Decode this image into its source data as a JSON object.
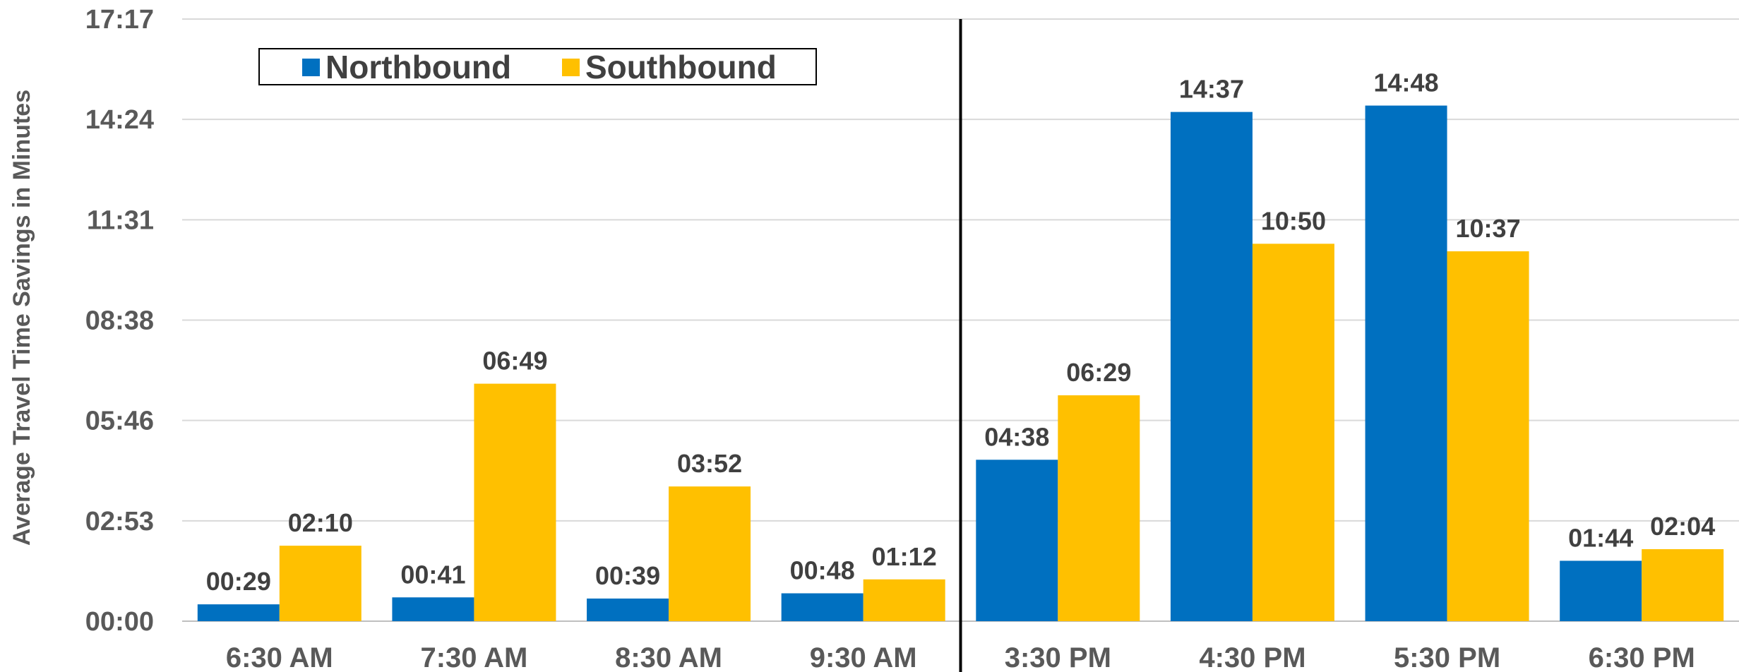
{
  "chart_data": {
    "type": "bar",
    "ylabel": "Average Travel Time Savings in Minutes",
    "xlabel": "",
    "y_ticks": [
      "00:00",
      "02:53",
      "05:46",
      "08:38",
      "11:31",
      "14:24",
      "17:17"
    ],
    "ylim_seconds": [
      0,
      1037
    ],
    "grid": true,
    "legend_position": "top-left",
    "categories": [
      "6:30 AM",
      "7:30 AM",
      "8:30 AM",
      "9:30 AM",
      "3:30 PM",
      "4:30 PM",
      "5:30 PM",
      "6:30 PM"
    ],
    "divider_after_category": "9:30 AM",
    "series": [
      {
        "name": "Northbound",
        "color": "#0070C0",
        "values_seconds": [
          29,
          41,
          39,
          48,
          278,
          877,
          888,
          104
        ],
        "labels": [
          "00:29",
          "00:41",
          "00:39",
          "00:48",
          "04:38",
          "14:37",
          "14:48",
          "01:44"
        ]
      },
      {
        "name": "Southbound",
        "color": "#FFC000",
        "values_seconds": [
          130,
          409,
          232,
          72,
          389,
          650,
          637,
          124
        ],
        "labels": [
          "02:10",
          "06:49",
          "03:52",
          "01:12",
          "06:29",
          "10:50",
          "10:37",
          "02:04"
        ]
      }
    ]
  }
}
